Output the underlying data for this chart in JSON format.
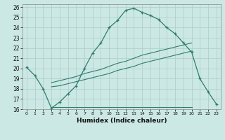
{
  "xlabel": "Humidex (Indice chaleur)",
  "bg_color": "#cce8e4",
  "line_color": "#2d7d6e",
  "grid_color": "#aaccca",
  "xlim": [
    -0.5,
    23.5
  ],
  "ylim": [
    16,
    26.3
  ],
  "yticks": [
    16,
    17,
    18,
    19,
    20,
    21,
    22,
    23,
    24,
    25,
    26
  ],
  "xticks": [
    0,
    1,
    2,
    3,
    4,
    5,
    6,
    7,
    8,
    9,
    10,
    11,
    12,
    13,
    14,
    15,
    16,
    17,
    18,
    19,
    20,
    21,
    22,
    23
  ],
  "curve1_x": [
    0,
    1,
    2,
    3,
    4,
    5,
    6,
    7,
    8,
    9,
    10,
    11,
    12,
    13,
    14,
    15,
    16,
    17,
    18,
    19,
    20,
    21,
    22,
    23
  ],
  "curve1_y": [
    20.1,
    19.3,
    18.0,
    16.1,
    16.7,
    17.5,
    18.3,
    20.0,
    21.5,
    22.5,
    24.0,
    24.7,
    25.7,
    25.9,
    25.5,
    25.2,
    24.8,
    24.0,
    23.4,
    22.5,
    21.6,
    19.0,
    17.7,
    16.5
  ],
  "curve2_x": [
    3,
    4,
    5,
    6,
    7,
    8,
    9,
    10,
    11,
    12,
    13,
    14,
    15,
    16,
    17,
    18,
    19,
    20
  ],
  "curve2_y": [
    16.2,
    16.2,
    16.2,
    16.2,
    16.2,
    16.2,
    16.2,
    16.2,
    16.2,
    16.2,
    16.2,
    16.2,
    16.2,
    16.2,
    16.2,
    16.2,
    16.2,
    16.2
  ],
  "curve3_x": [
    3,
    4,
    5,
    6,
    7,
    8,
    9,
    10,
    11,
    12,
    13,
    14,
    15,
    16,
    17,
    18,
    19,
    20
  ],
  "curve3_y": [
    18.2,
    18.3,
    18.5,
    18.7,
    18.9,
    19.1,
    19.3,
    19.5,
    19.8,
    20.0,
    20.2,
    20.5,
    20.7,
    20.9,
    21.1,
    21.3,
    21.5,
    21.7
  ],
  "curve4_x": [
    3,
    4,
    5,
    6,
    7,
    8,
    9,
    10,
    11,
    12,
    13,
    14,
    15,
    16,
    17,
    18,
    19,
    20
  ],
  "curve4_y": [
    18.6,
    18.8,
    19.0,
    19.2,
    19.5,
    19.7,
    19.9,
    20.2,
    20.5,
    20.7,
    21.0,
    21.3,
    21.5,
    21.7,
    21.9,
    22.1,
    22.3,
    22.5
  ]
}
